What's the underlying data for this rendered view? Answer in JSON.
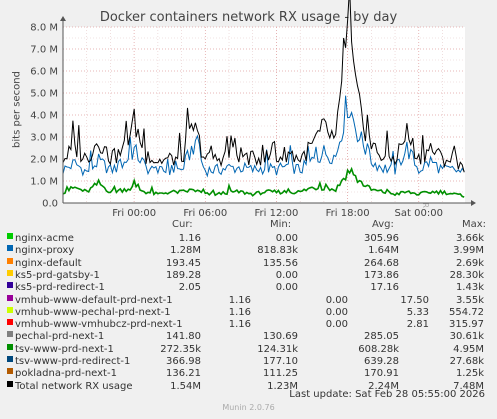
{
  "title": "Docker containers network RX usage - by day",
  "side_label": "RRDTOOL / TOBI OETIKER",
  "ylabel": "bits per second",
  "columns": [
    "Cur:",
    "Min:",
    "Avg:",
    "Max:"
  ],
  "legend": [
    {
      "name": "nginx-acme",
      "color": "#00cc00",
      "cur": "1.16",
      "min": "0.00",
      "avg": "305.96",
      "max": "3.66k"
    },
    {
      "name": "nginx-proxy",
      "color": "#0066b3",
      "cur": "1.28M",
      "min": "818.83k",
      "avg": "1.64M",
      "max": "3.99M"
    },
    {
      "name": "nginx-default",
      "color": "#ff8000",
      "cur": "193.45",
      "min": "135.56",
      "avg": "264.68",
      "max": "2.69k"
    },
    {
      "name": "ks5-prd-gatsby-1",
      "color": "#ffcc00",
      "cur": "189.28",
      "min": "0.00",
      "avg": "173.86",
      "max": "28.30k"
    },
    {
      "name": "ks5-prd-redirect-1",
      "color": "#330099",
      "cur": "2.05",
      "min": "0.00",
      "avg": "17.16",
      "max": "1.43k"
    },
    {
      "name": "vmhub-www-default-prd-next-1",
      "color": "#990099",
      "cur": "1.16",
      "min": "0.00",
      "avg": "17.50",
      "max": "3.55k"
    },
    {
      "name": "vmhub-www-pechal-prd-next-1",
      "color": "#ccff00",
      "cur": "1.16",
      "min": "0.00",
      "avg": "5.33",
      "max": "554.72"
    },
    {
      "name": "vmhub-www-vmhubcz-prd-next-1",
      "color": "#ff0000",
      "cur": "1.16",
      "min": "0.00",
      "avg": "2.81",
      "max": "315.97"
    },
    {
      "name": "pechal-prd-next-1",
      "color": "#808080",
      "cur": "141.80",
      "min": "130.69",
      "avg": "285.05",
      "max": "30.61k"
    },
    {
      "name": "tsv-www-prd-next-1",
      "color": "#008f00",
      "cur": "272.35k",
      "min": "124.31k",
      "avg": "608.28k",
      "max": "4.95M"
    },
    {
      "name": "tsv-www-prd-redirect-1",
      "color": "#00487d",
      "cur": "366.98",
      "min": "177.10",
      "avg": "639.28",
      "max": "27.68k"
    },
    {
      "name": "pokladna-prd-next-1",
      "color": "#b35a00",
      "cur": "136.21",
      "min": "111.25",
      "avg": "170.91",
      "max": "1.25k"
    },
    {
      "name": "Total network RX usage",
      "color": "#000000",
      "cur": "1.54M",
      "min": "1.23M",
      "avg": "2.24M",
      "max": "7.48M"
    }
  ],
  "last_update": "Last update: Sat Feb 28 05:55:00 2026",
  "munin": "Munin 2.0.76",
  "chart_data": {
    "type": "line",
    "title": "Docker containers network RX usage - by day",
    "ylabel": "bits per second",
    "ylim": [
      0,
      8000000
    ],
    "y_ticks": [
      "0.0",
      "1.0 M",
      "2.0 M",
      "3.0 M",
      "4.0 M",
      "5.0 M",
      "6.0 M",
      "7.0 M",
      "8.0 M"
    ],
    "x_ticks": [
      "Fri 00:00",
      "Fri 06:00",
      "Fri 12:00",
      "Fri 18:00",
      "Sat 00:00"
    ],
    "x_tick_hours": [
      6,
      12,
      18,
      24,
      30
    ],
    "x_range_hours": [
      0,
      33.9
    ],
    "grid": true,
    "series": [
      {
        "name": "nginx-proxy",
        "color": "#0066b3",
        "hourly": [
          1.5,
          1.8,
          1.4,
          1.9,
          1.5,
          1.7,
          2.4,
          1.6,
          1.4,
          1.5,
          1.5,
          2.6,
          1.5,
          1.5,
          1.6,
          1.6,
          1.5,
          1.6,
          1.5,
          1.7,
          1.5,
          1.9,
          2.3,
          2.1,
          4.6,
          3.0,
          1.9,
          1.6,
          1.5,
          2.5,
          1.5,
          1.9,
          1.5,
          1.5,
          1.3
        ]
      },
      {
        "name": "tsv-www-prd-next-1",
        "color": "#008f00",
        "hourly": [
          0.5,
          0.7,
          0.5,
          0.9,
          0.5,
          0.6,
          0.7,
          0.5,
          0.4,
          0.5,
          0.5,
          0.6,
          0.4,
          0.4,
          0.5,
          0.5,
          0.4,
          0.5,
          0.5,
          0.5,
          0.5,
          0.7,
          0.7,
          0.6,
          1.4,
          1.0,
          0.6,
          0.5,
          0.4,
          0.5,
          0.4,
          0.5,
          0.5,
          0.4,
          0.3
        ]
      },
      {
        "name": "Total network RX usage",
        "color": "#000000",
        "hourly": [
          2.0,
          2.5,
          2.0,
          2.9,
          2.0,
          2.3,
          3.7,
          2.1,
          1.9,
          2.0,
          2.0,
          3.5,
          2.0,
          2.0,
          2.2,
          2.2,
          2.0,
          2.1,
          2.0,
          2.3,
          2.0,
          2.6,
          3.4,
          2.8,
          7.5,
          4.2,
          2.6,
          2.1,
          2.0,
          3.2,
          2.0,
          2.5,
          2.0,
          2.0,
          1.6
        ]
      }
    ]
  }
}
